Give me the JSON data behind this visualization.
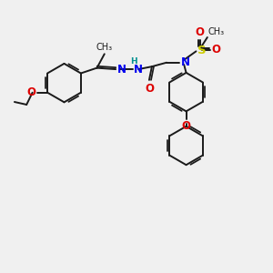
{
  "bg_color": "#f0f0f0",
  "bond_color": "#1a1a1a",
  "bond_width": 1.4,
  "atom_colors": {
    "N": "#0000ee",
    "O": "#dd0000",
    "S": "#cccc00",
    "H": "#008080",
    "C": "#1a1a1a"
  },
  "font_size_atom": 8.5,
  "font_size_small": 7.0
}
